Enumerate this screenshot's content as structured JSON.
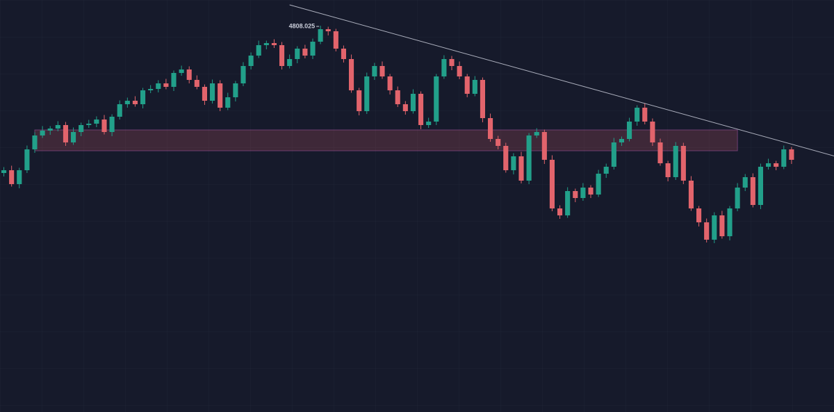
{
  "chart_data": {
    "type": "candlestick",
    "up_color": "#22a08a",
    "down_color": "#e2646c",
    "xlim": [
      -0.5,
      107.5
    ],
    "ylim": [
      2584,
      4956
    ],
    "open": [
      3960,
      3976,
      3896,
      3976,
      4096,
      4176,
      4204,
      4216,
      4236,
      4136,
      4196,
      4236,
      4244,
      4268,
      4196,
      4284,
      4356,
      4376,
      4356,
      4436,
      4444,
      4476,
      4456,
      4536,
      4556,
      4496,
      4456,
      4376,
      4476,
      4336,
      4396,
      4476,
      4576,
      4636,
      4696,
      4708,
      4696,
      4576,
      4616,
      4676,
      4636,
      4716,
      4788,
      4776,
      4676,
      4616,
      4436,
      4316,
      4516,
      4576,
      4516,
      4436,
      4356,
      4316,
      4416,
      4236,
      4256,
      4516,
      4616,
      4576,
      4516,
      4416,
      4496,
      4276,
      4156,
      4116,
      3976,
      4056,
      3916,
      4176,
      4196,
      4036,
      3756,
      3716,
      3856,
      3816,
      3876,
      3836,
      3956,
      3996,
      4136,
      4156,
      4256,
      4336,
      4256,
      4136,
      4016,
      3936,
      4116,
      3916,
      3756,
      3676,
      3576,
      3716,
      3596,
      3756,
      3876,
      3936,
      3776,
      3996,
      4016,
      3996,
      4096
    ],
    "high": [
      3994,
      4002,
      3990,
      4118,
      4194,
      4230,
      4230,
      4258,
      4254,
      4222,
      4250,
      4266,
      4286,
      4294,
      4298,
      4378,
      4394,
      4402,
      4450,
      4466,
      4494,
      4502,
      4550,
      4578,
      4574,
      4522,
      4470,
      4498,
      4494,
      4422,
      4490,
      4598,
      4654,
      4722,
      4722,
      4730,
      4714,
      4642,
      4690,
      4698,
      4734,
      4808.025,
      4802,
      4790,
      4694,
      4642,
      4450,
      4538,
      4594,
      4602,
      4530,
      4458,
      4374,
      4442,
      4430,
      4278,
      4530,
      4638,
      4634,
      4602,
      4530,
      4518,
      4510,
      4302,
      4174,
      4134,
      4074,
      4082,
      4190,
      4218,
      4210,
      4062,
      3774,
      3878,
      3870,
      3902,
      3890,
      3978,
      4014,
      4162,
      4170,
      4278,
      4350,
      4362,
      4274,
      4158,
      4030,
      4138,
      4134,
      3942,
      3770,
      3698,
      3734,
      3742,
      3770,
      3902,
      3954,
      3958,
      4014,
      4042,
      4030,
      4118,
      4110
    ],
    "low": [
      3940,
      3882,
      3872,
      3960,
      4076,
      4162,
      4180,
      4200,
      4116,
      4122,
      4172,
      4220,
      4224,
      4182,
      4172,
      4268,
      4336,
      4342,
      4332,
      4420,
      4424,
      4442,
      4432,
      4520,
      4476,
      4442,
      4352,
      4360,
      4316,
      4322,
      4372,
      4460,
      4556,
      4622,
      4672,
      4680,
      4556,
      4562,
      4592,
      4620,
      4616,
      4702,
      4752,
      4660,
      4596,
      4422,
      4292,
      4300,
      4496,
      4502,
      4412,
      4340,
      4296,
      4302,
      4212,
      4220,
      4236,
      4502,
      4552,
      4500,
      4396,
      4402,
      4252,
      4140,
      4096,
      3962,
      3952,
      3900,
      3896,
      4162,
      4012,
      3740,
      3696,
      3702,
      3792,
      3800,
      3816,
      3822,
      3932,
      3980,
      4116,
      4142,
      4232,
      4240,
      4116,
      4002,
      3912,
      3920,
      3896,
      3742,
      3652,
      3560,
      3556,
      3582,
      3572,
      3740,
      3856,
      3762,
      3752,
      3980,
      3976,
      3982,
      4012
    ],
    "close": [
      3976,
      3896,
      3976,
      4096,
      4176,
      4204,
      4216,
      4236,
      4136,
      4196,
      4236,
      4244,
      4268,
      4196,
      4284,
      4356,
      4376,
      4356,
      4436,
      4444,
      4476,
      4456,
      4536,
      4556,
      4496,
      4456,
      4376,
      4476,
      4336,
      4396,
      4476,
      4576,
      4636,
      4696,
      4708,
      4696,
      4576,
      4616,
      4676,
      4636,
      4716,
      4788,
      4776,
      4676,
      4616,
      4436,
      4316,
      4516,
      4576,
      4516,
      4436,
      4356,
      4316,
      4416,
      4236,
      4256,
      4516,
      4616,
      4576,
      4516,
      4416,
      4496,
      4276,
      4156,
      4116,
      3976,
      4056,
      3916,
      4176,
      4196,
      4036,
      3756,
      3716,
      3856,
      3816,
      3876,
      3836,
      3956,
      3996,
      4136,
      4156,
      4256,
      4336,
      4256,
      4136,
      4016,
      3936,
      4116,
      3916,
      3756,
      3676,
      3576,
      3716,
      3596,
      3756,
      3876,
      3936,
      3776,
      3996,
      4016,
      3996,
      4096,
      4036
    ],
    "zone": {
      "x": [
        4,
        95
      ],
      "y": [
        4208,
        4088
      ],
      "color": "#e2646c"
    },
    "trendline": {
      "x": [
        37,
        108
      ],
      "y": [
        4928,
        4052
      ],
      "color": "#c9cdd9"
    },
    "high_marker_index": 41
  }
}
